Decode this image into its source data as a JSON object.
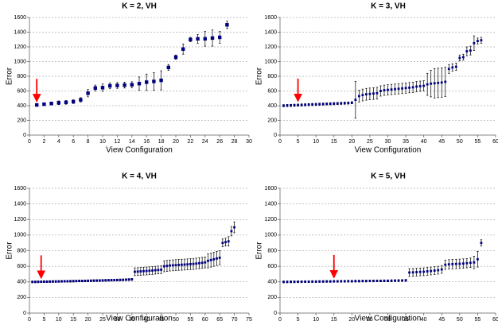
{
  "chart_data": [
    {
      "type": "scatter",
      "title": "K = 2, VH",
      "x_label": "View Configuration",
      "y_label": "Error",
      "xlim": [
        0,
        30
      ],
      "xticks": [
        0,
        2,
        4,
        6,
        8,
        10,
        12,
        14,
        16,
        18,
        20,
        22,
        24,
        26,
        28,
        30
      ],
      "ylim": [
        0,
        1600
      ],
      "yticks": [
        0,
        200,
        400,
        600,
        800,
        1000,
        1200,
        1400,
        1600
      ],
      "grid": true,
      "arrow_x": 1,
      "arrow_color": "#ff0000",
      "series": [
        {
          "color": "#000080",
          "x": [
            1,
            2,
            3,
            4,
            5,
            6,
            7,
            8,
            9,
            10,
            11,
            12,
            13,
            14,
            15,
            16,
            17,
            18,
            19,
            20,
            21,
            22,
            23,
            24,
            25,
            26,
            27
          ],
          "values": [
            410,
            420,
            430,
            440,
            445,
            455,
            480,
            570,
            640,
            645,
            670,
            675,
            680,
            685,
            700,
            720,
            730,
            745,
            920,
            1060,
            1170,
            1300,
            1310,
            1310,
            1320,
            1330,
            1500
          ],
          "errors": [
            10,
            15,
            20,
            25,
            25,
            25,
            30,
            50,
            40,
            50,
            40,
            40,
            40,
            40,
            90,
            110,
            120,
            130,
            40,
            30,
            70,
            30,
            60,
            100,
            110,
            80,
            50
          ]
        }
      ]
    },
    {
      "type": "scatter",
      "title": "K = 3, VH",
      "x_label": "View Configuration",
      "y_label": "Error",
      "xlim": [
        0,
        60
      ],
      "xticks": [
        0,
        5,
        10,
        15,
        20,
        25,
        30,
        35,
        40,
        45,
        50,
        55,
        60
      ],
      "ylim": [
        0,
        1600
      ],
      "yticks": [
        0,
        200,
        400,
        600,
        800,
        1000,
        1200,
        1400,
        1600
      ],
      "grid": true,
      "arrow_x": 5,
      "arrow_color": "#ff0000",
      "series": [
        {
          "color": "#000080",
          "x": [
            1,
            2,
            3,
            4,
            5,
            6,
            7,
            8,
            9,
            10,
            11,
            12,
            13,
            14,
            15,
            16,
            17,
            18,
            19,
            20,
            21,
            22,
            23,
            24,
            25,
            26,
            27,
            28,
            29,
            30,
            31,
            32,
            33,
            34,
            35,
            36,
            37,
            38,
            39,
            40,
            41,
            42,
            43,
            44,
            45,
            46,
            47,
            48,
            49,
            50,
            51,
            52,
            53,
            54,
            55,
            56
          ],
          "values": [
            400,
            402,
            404,
            406,
            408,
            410,
            412,
            414,
            416,
            418,
            420,
            422,
            424,
            426,
            428,
            430,
            432,
            434,
            436,
            440,
            480,
            530,
            545,
            555,
            560,
            565,
            570,
            600,
            610,
            615,
            620,
            625,
            630,
            635,
            640,
            645,
            650,
            660,
            665,
            670,
            690,
            700,
            705,
            710,
            715,
            725,
            900,
            920,
            930,
            1050,
            1060,
            1140,
            1150,
            1250,
            1280,
            1290
          ],
          "errors": [
            15,
            15,
            15,
            15,
            15,
            15,
            15,
            15,
            15,
            15,
            15,
            15,
            15,
            15,
            15,
            15,
            15,
            15,
            15,
            15,
            250,
            80,
            80,
            80,
            80,
            80,
            80,
            70,
            70,
            70,
            70,
            70,
            70,
            70,
            70,
            70,
            70,
            70,
            70,
            70,
            150,
            180,
            200,
            200,
            200,
            200,
            60,
            50,
            50,
            40,
            40,
            60,
            60,
            100,
            40,
            40
          ]
        }
      ]
    },
    {
      "type": "scatter",
      "title": "K = 4, VH",
      "x_label": "View Configuration",
      "y_label": "Error",
      "xlim": [
        0,
        75
      ],
      "xticks": [
        0,
        5,
        10,
        15,
        20,
        25,
        30,
        35,
        40,
        45,
        50,
        55,
        60,
        65,
        70,
        75
      ],
      "ylim": [
        0,
        1600
      ],
      "yticks": [
        0,
        200,
        400,
        600,
        800,
        1000,
        1200,
        1400,
        1600
      ],
      "grid": true,
      "arrow_x": 4,
      "arrow_color": "#ff0000",
      "series": [
        {
          "color": "#000080",
          "x": [
            1,
            2,
            3,
            4,
            5,
            6,
            7,
            8,
            9,
            10,
            11,
            12,
            13,
            14,
            15,
            16,
            17,
            18,
            19,
            20,
            21,
            22,
            23,
            24,
            25,
            26,
            27,
            28,
            29,
            30,
            31,
            32,
            33,
            34,
            35,
            36,
            37,
            38,
            39,
            40,
            41,
            42,
            43,
            44,
            45,
            46,
            47,
            48,
            49,
            50,
            51,
            52,
            53,
            54,
            55,
            56,
            57,
            58,
            59,
            60,
            61,
            62,
            63,
            64,
            65,
            66,
            67,
            68,
            69,
            70
          ],
          "values": [
            400,
            400,
            401,
            402,
            403,
            403,
            404,
            405,
            405,
            406,
            407,
            408,
            408,
            409,
            410,
            411,
            412,
            412,
            413,
            414,
            415,
            416,
            417,
            418,
            419,
            420,
            421,
            422,
            423,
            424,
            425,
            426,
            428,
            430,
            432,
            530,
            532,
            535,
            538,
            540,
            543,
            546,
            550,
            553,
            556,
            600,
            605,
            610,
            612,
            615,
            618,
            620,
            622,
            625,
            628,
            630,
            635,
            640,
            645,
            650,
            670,
            680,
            690,
            700,
            710,
            900,
            910,
            920,
            1050,
            1100
          ],
          "errors": [
            12,
            12,
            12,
            12,
            12,
            12,
            12,
            12,
            12,
            12,
            12,
            12,
            12,
            12,
            12,
            12,
            12,
            12,
            12,
            12,
            12,
            12,
            12,
            12,
            12,
            12,
            12,
            12,
            12,
            12,
            12,
            12,
            12,
            12,
            12,
            50,
            50,
            50,
            50,
            50,
            50,
            50,
            50,
            50,
            50,
            70,
            70,
            70,
            70,
            70,
            70,
            70,
            70,
            70,
            70,
            70,
            70,
            70,
            70,
            70,
            90,
            90,
            90,
            90,
            90,
            50,
            50,
            60,
            60,
            70
          ]
        }
      ]
    },
    {
      "type": "scatter",
      "title": "K = 5, VH",
      "x_label": "View Configuration",
      "y_label": "Error",
      "xlim": [
        0,
        60
      ],
      "xticks": [
        0,
        5,
        10,
        15,
        20,
        25,
        30,
        35,
        40,
        45,
        50,
        55,
        60
      ],
      "ylim": [
        0,
        1600
      ],
      "yticks": [
        0,
        200,
        400,
        600,
        800,
        1000,
        1200,
        1400,
        1600
      ],
      "grid": true,
      "arrow_x": 15,
      "arrow_color": "#ff0000",
      "series": [
        {
          "color": "#000080",
          "x": [
            1,
            2,
            3,
            4,
            5,
            6,
            7,
            8,
            9,
            10,
            11,
            12,
            13,
            14,
            15,
            16,
            17,
            18,
            19,
            20,
            21,
            22,
            23,
            24,
            25,
            26,
            27,
            28,
            29,
            30,
            31,
            32,
            33,
            34,
            35,
            36,
            37,
            38,
            39,
            40,
            41,
            42,
            43,
            44,
            45,
            46,
            47,
            48,
            49,
            50,
            51,
            52,
            53,
            54,
            55,
            56
          ],
          "values": [
            400,
            400,
            401,
            401,
            402,
            402,
            403,
            403,
            404,
            404,
            405,
            405,
            406,
            406,
            407,
            407,
            408,
            408,
            409,
            409,
            410,
            410,
            411,
            411,
            412,
            412,
            413,
            413,
            414,
            414,
            415,
            416,
            417,
            418,
            420,
            520,
            522,
            525,
            528,
            530,
            535,
            540,
            545,
            550,
            560,
            620,
            625,
            628,
            630,
            632,
            635,
            640,
            645,
            650,
            690,
            900
          ],
          "errors": [
            12,
            12,
            12,
            12,
            12,
            12,
            12,
            12,
            12,
            12,
            12,
            12,
            12,
            12,
            12,
            12,
            12,
            12,
            12,
            12,
            12,
            12,
            12,
            12,
            12,
            12,
            12,
            12,
            12,
            12,
            12,
            12,
            12,
            12,
            12,
            50,
            50,
            50,
            50,
            50,
            50,
            50,
            50,
            50,
            50,
            60,
            60,
            60,
            60,
            60,
            60,
            60,
            60,
            80,
            100,
            40
          ]
        }
      ]
    }
  ]
}
